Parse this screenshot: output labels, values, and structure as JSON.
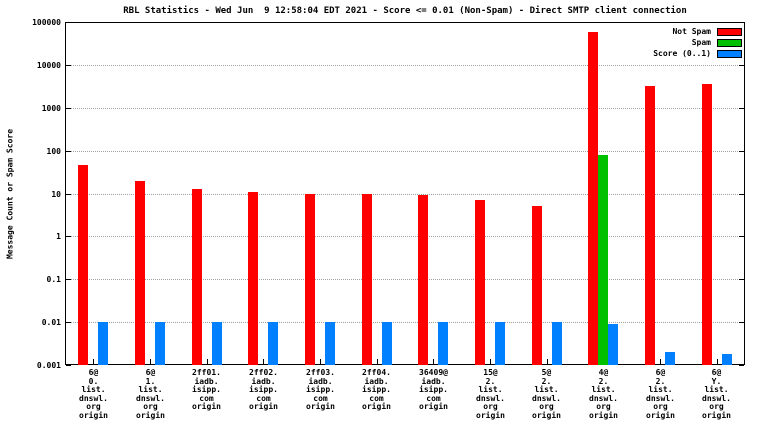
{
  "chart_data": {
    "type": "bar",
    "title": "RBL Statistics - Wed Jun  9 12:58:04 EDT 2021 - Score <= 0.01 (Non-Spam) - Direct SMTP client connection",
    "ylabel": "Message Count or Spam Score",
    "xlabel": "",
    "yscale": "log",
    "ylim": [
      0.001,
      100000
    ],
    "ytick_labels": [
      "0.001",
      "0.01",
      "0.1",
      "1",
      "10",
      "100",
      "1000",
      "10000",
      "100000"
    ],
    "grid": true,
    "legend_position": "top-right",
    "categories": [
      [
        "6@",
        "0.",
        "list.",
        "dnswl.",
        "org",
        "origin"
      ],
      [
        "6@",
        "1.",
        "list.",
        "dnswl.",
        "org",
        "origin"
      ],
      [
        "2ff01.",
        "iadb.",
        "isipp.",
        "com",
        "origin"
      ],
      [
        "2ff02.",
        "iadb.",
        "isipp.",
        "com",
        "origin"
      ],
      [
        "2ff03.",
        "iadb.",
        "isipp.",
        "com",
        "origin"
      ],
      [
        "2ff04.",
        "iadb.",
        "isipp.",
        "com",
        "origin"
      ],
      [
        "36409@",
        "iadb.",
        "isipp.",
        "com",
        "origin"
      ],
      [
        "15@",
        "2.",
        "list.",
        "dnswl.",
        "org",
        "origin"
      ],
      [
        "5@",
        "2.",
        "list.",
        "dnswl.",
        "org",
        "origin"
      ],
      [
        "4@",
        "2.",
        "list.",
        "dnswl.",
        "org",
        "origin"
      ],
      [
        "6@",
        "2.",
        "list.",
        "dnswl.",
        "org",
        "origin"
      ],
      [
        "6@",
        "Y.",
        "list.",
        "dnswl.",
        "org",
        "origin"
      ]
    ],
    "series": [
      {
        "name": "Not Spam",
        "color": "#ff0000",
        "values": [
          45,
          20,
          13,
          11,
          10,
          10,
          9,
          7,
          5,
          60000,
          3300,
          3600
        ]
      },
      {
        "name": "Spam",
        "color": "#00c000",
        "values": [
          null,
          null,
          null,
          null,
          null,
          null,
          null,
          null,
          null,
          80,
          null,
          null
        ]
      },
      {
        "name": "Score (0..1)",
        "color": "#0080ff",
        "values": [
          0.01,
          0.01,
          0.01,
          0.01,
          0.01,
          0.01,
          0.01,
          0.01,
          0.01,
          0.009,
          0.002,
          0.0018
        ]
      }
    ]
  }
}
